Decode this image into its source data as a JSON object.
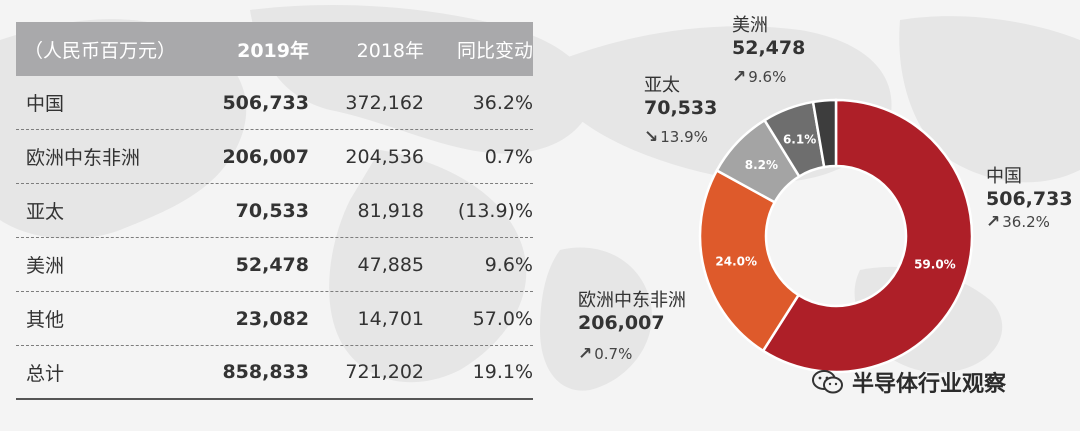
{
  "table": {
    "headers": [
      "（人民币百万元）",
      "2019年",
      "2018年",
      "同比变动"
    ],
    "rows": [
      {
        "region": "中国",
        "y2019": "506,733",
        "y2018": "372,162",
        "change": "36.2%"
      },
      {
        "region": "欧洲中东非洲",
        "y2019": "206,007",
        "y2018": "204,536",
        "change": "0.7%"
      },
      {
        "region": "亚太",
        "y2019": "70,533",
        "y2018": "81,918",
        "change": "(13.9)%"
      },
      {
        "region": "美洲",
        "y2019": "52,478",
        "y2018": "47,885",
        "change": "9.6%"
      },
      {
        "region": "其他",
        "y2019": "23,082",
        "y2018": "14,701",
        "change": "57.0%"
      },
      {
        "region": "总计",
        "y2019": "858,833",
        "y2018": "721,202",
        "change": "19.1%"
      }
    ]
  },
  "chart_data": {
    "type": "pie",
    "categories": [
      "中国",
      "欧洲中东非洲",
      "亚太",
      "美洲",
      "其他"
    ],
    "values": [
      59.0,
      24.0,
      8.2,
      6.1,
      2.7
    ],
    "slice_labels": [
      "59.0%",
      "24.0%",
      "8.2%",
      "6.1%",
      ""
    ],
    "colors": [
      "#ae1f28",
      "#de5a2b",
      "#a4a4a4",
      "#6e6e6e",
      "#3d3d3d"
    ],
    "donut": true,
    "callouts": [
      {
        "name": "中国",
        "value": "506,733",
        "arrow": "↗",
        "change": "36.2%"
      },
      {
        "name": "欧洲中东非洲",
        "value": "206,007",
        "arrow": "↗",
        "change": "0.7%"
      },
      {
        "name": "亚太",
        "value": "70,533",
        "arrow": "↘",
        "change": "13.9%"
      },
      {
        "name": "美洲",
        "value": "52,478",
        "arrow": "↗",
        "change": "9.6%"
      }
    ]
  },
  "watermark": {
    "text": "半导体行业观察",
    "icon": "wechat-icon"
  }
}
